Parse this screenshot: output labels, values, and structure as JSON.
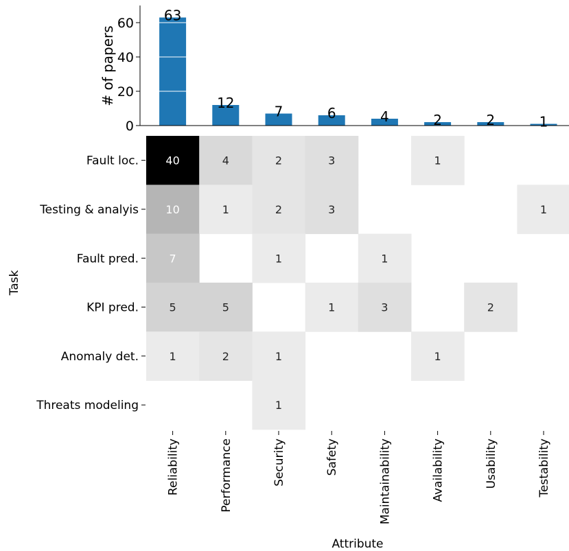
{
  "chart_data": [
    {
      "type": "bar",
      "ylabel": "# of papers",
      "ylim": [
        0,
        70
      ],
      "yticks": [
        0,
        20,
        40,
        60
      ],
      "categories": [
        "Reliability",
        "Performance",
        "Security",
        "Safety",
        "Maintainability",
        "Availability",
        "Usability",
        "Testability"
      ],
      "values": [
        63,
        12,
        7,
        6,
        4,
        2,
        2,
        1
      ],
      "data_labels": [
        "63",
        "12",
        "7",
        "6",
        "4",
        "2",
        "2",
        "1"
      ],
      "colors": {
        "bar": "#1f77b4",
        "grid": "#ffffff"
      }
    },
    {
      "type": "heatmap",
      "xlabel": "Attribute",
      "ylabel": "Task",
      "columns": [
        "Reliability",
        "Performance",
        "Security",
        "Safety",
        "Maintainability",
        "Availability",
        "Usability",
        "Testability"
      ],
      "rows": [
        "Fault loc.",
        "Testing & analyis",
        "Fault pred.",
        "KPI pred.",
        "Anomaly det.",
        "Threats modeling"
      ],
      "values": [
        [
          40,
          4,
          2,
          3,
          null,
          1,
          null,
          null
        ],
        [
          10,
          1,
          2,
          3,
          null,
          null,
          null,
          1
        ],
        [
          7,
          null,
          1,
          null,
          1,
          null,
          null,
          null
        ],
        [
          5,
          5,
          null,
          1,
          3,
          null,
          2,
          null
        ],
        [
          1,
          2,
          1,
          null,
          null,
          1,
          null,
          null
        ],
        [
          null,
          null,
          1,
          null,
          null,
          null,
          null,
          null
        ]
      ],
      "colormap": "gray_r"
    }
  ]
}
